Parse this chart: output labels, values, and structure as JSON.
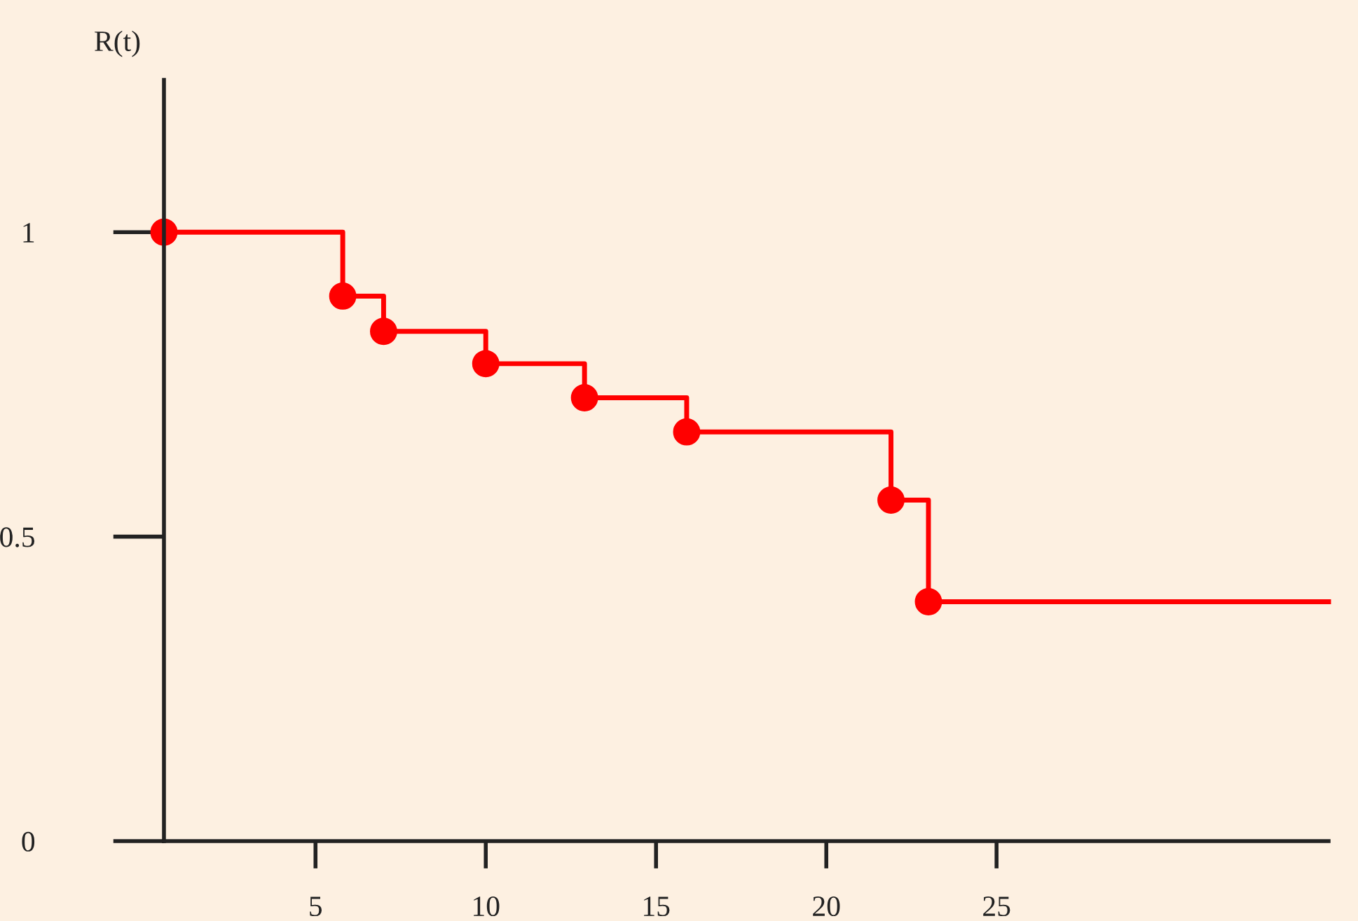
{
  "chart_data": {
    "type": "step",
    "ylabel": "R(t)",
    "x": [
      0.55,
      5.8,
      7,
      10,
      12.9,
      15.9,
      21.9,
      23,
      34.75
    ],
    "series": [
      {
        "color": "#ff0000",
        "values": [
          1,
          0.895,
          0.837,
          0.784,
          0.728,
          0.672,
          0.56,
          0.393,
          0.393
        ]
      }
    ],
    "marker": "circle",
    "line_style": "solid",
    "xlim": [
      0.55,
      34.75
    ],
    "ylim": [
      0,
      1.25
    ],
    "xticks": [
      5,
      10,
      15,
      20,
      25
    ],
    "yticks": [
      0,
      0.5,
      1
    ],
    "grid": false,
    "legend": false
  }
}
